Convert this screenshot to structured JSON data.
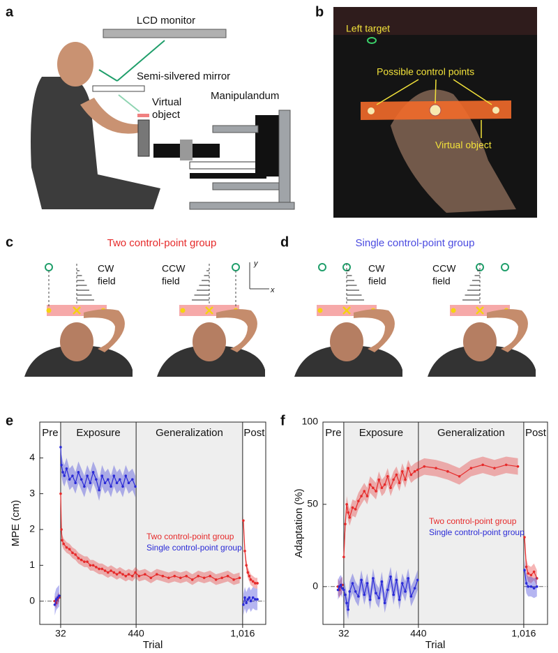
{
  "figure": {
    "letters": [
      "a",
      "b",
      "c",
      "d",
      "e",
      "f"
    ],
    "panel_a": {
      "monitor": "LCD monitor",
      "mirror": "Semi-silvered mirror",
      "object": [
        "Virtual",
        "object"
      ],
      "manipulandum": "Manipulandum"
    },
    "panel_b": {
      "target": "Left target",
      "points": "Possible control points",
      "object": "Virtual object"
    },
    "panel_c": {
      "title": "Two control-point group",
      "cw": [
        "CW",
        "field"
      ],
      "ccw": [
        "CCW",
        "field"
      ],
      "y_axis": "y",
      "x_axis": "x"
    },
    "panel_d": {
      "title": "Single control-point group",
      "cw": [
        "CW",
        "field"
      ],
      "ccw": [
        "CCW",
        "field"
      ]
    }
  },
  "chart_data": [
    {
      "type": "line",
      "xlabel": "Trial",
      "ylabel": "MPE (cm)",
      "xlim": [
        -81,
        1141
      ],
      "ylim": [
        -0.65,
        5
      ],
      "xticks": [
        32,
        440,
        {
          "value": 1016,
          "label": "1,016"
        }
      ],
      "yticks": [
        0,
        1,
        2,
        3,
        4
      ],
      "regions": [
        "Pre",
        "Exposure",
        "Generalization",
        "Post"
      ],
      "zero_line": true,
      "series": [
        {
          "name": "Two control-point group",
          "color": "#e62a2a",
          "error": 0.15,
          "x": [
            0,
            8,
            16,
            24,
            30,
            32,
            36,
            40,
            48,
            64,
            80,
            96,
            112,
            128,
            144,
            160,
            176,
            192,
            208,
            224,
            240,
            256,
            272,
            288,
            304,
            320,
            336,
            352,
            368,
            384,
            400,
            420,
            436,
            456,
            488,
            520,
            552,
            584,
            616,
            648,
            680,
            712,
            744,
            776,
            808,
            840,
            872,
            904,
            936,
            968,
            1000,
            1010,
            1020,
            1028,
            1036,
            1044,
            1052,
            1060,
            1072,
            1084,
            1096
          ],
          "values": [
            0,
            -0.05,
            0.05,
            0.1,
            null,
            3.0,
            2.0,
            1.7,
            1.6,
            1.5,
            1.45,
            1.35,
            1.3,
            1.2,
            1.15,
            1.1,
            1.1,
            1.0,
            1.0,
            0.95,
            0.9,
            0.9,
            0.85,
            0.8,
            0.85,
            0.8,
            0.75,
            0.8,
            0.75,
            0.7,
            0.75,
            0.7,
            0.8,
            0.7,
            0.75,
            0.65,
            0.75,
            0.7,
            0.65,
            0.7,
            0.65,
            0.7,
            0.6,
            0.7,
            0.65,
            0.7,
            0.6,
            0.65,
            0.7,
            0.6,
            0.65,
            null,
            2.25,
            1.4,
            1.0,
            0.8,
            0.7,
            0.6,
            0.55,
            0.5,
            0.5
          ]
        },
        {
          "name": "Single control-point group",
          "color": "#2a2ad6",
          "error": 0.3,
          "x": [
            0,
            8,
            16,
            24,
            30,
            32,
            36,
            44,
            52,
            64,
            80,
            96,
            112,
            128,
            144,
            160,
            176,
            192,
            208,
            224,
            240,
            256,
            272,
            288,
            304,
            320,
            336,
            352,
            368,
            384,
            400,
            420,
            436,
            1010,
            1020,
            1028,
            1036,
            1044,
            1052,
            1060,
            1072,
            1084,
            1096
          ],
          "values": [
            -0.1,
            0.05,
            0.1,
            0.15,
            null,
            4.3,
            3.8,
            3.6,
            3.5,
            3.7,
            3.4,
            3.5,
            3.3,
            3.6,
            3.4,
            3.2,
            3.5,
            3.3,
            3.6,
            3.4,
            3.1,
            3.5,
            3.3,
            3.4,
            3.2,
            3.5,
            3.3,
            3.4,
            3.2,
            3.5,
            3.3,
            3.4,
            3.2,
            null,
            -0.1,
            0.1,
            -0.05,
            0.05,
            0.1,
            0.0,
            0.1,
            0.05,
            0.05
          ]
        }
      ]
    },
    {
      "type": "line",
      "xlabel": "Trial",
      "ylabel": "Adaptation (%)",
      "xlim": [
        -82,
        1146
      ],
      "ylim": [
        -23,
        100
      ],
      "xticks": [
        32,
        440,
        {
          "value": 1016,
          "label": "1,016"
        }
      ],
      "yticks": [
        0,
        50,
        100
      ],
      "regions": [
        "Pre",
        "Exposure",
        "Generalization",
        "Post"
      ],
      "zero_line": true,
      "series": [
        {
          "name": "Two control-point group",
          "color": "#e62a2a",
          "error": 5,
          "x": [
            0,
            8,
            16,
            24,
            30,
            32,
            40,
            48,
            56,
            64,
            80,
            96,
            112,
            128,
            144,
            160,
            176,
            192,
            208,
            224,
            240,
            256,
            272,
            288,
            304,
            320,
            336,
            352,
            368,
            384,
            400,
            420,
            436,
            472,
            536,
            600,
            664,
            728,
            792,
            856,
            920,
            984,
            1010,
            1020,
            1030,
            1040,
            1056,
            1072,
            1088
          ],
          "values": [
            0,
            -2,
            0,
            1,
            null,
            18,
            38,
            50,
            45,
            42,
            48,
            47,
            52,
            55,
            58,
            55,
            62,
            60,
            58,
            65,
            60,
            62,
            67,
            60,
            65,
            68,
            63,
            70,
            65,
            72,
            68,
            70,
            71,
            73,
            72,
            70,
            67,
            72,
            74,
            72,
            74,
            73,
            null,
            30,
            12,
            8,
            7,
            9,
            5
          ]
        },
        {
          "name": "Single control-point group",
          "color": "#2a2ad6",
          "error": 6,
          "x": [
            0,
            8,
            16,
            24,
            30,
            32,
            40,
            48,
            56,
            64,
            80,
            96,
            112,
            128,
            144,
            160,
            176,
            192,
            208,
            224,
            240,
            256,
            272,
            288,
            304,
            320,
            336,
            352,
            368,
            384,
            400,
            420,
            436,
            1010,
            1020,
            1030,
            1040,
            1056,
            1072,
            1088
          ],
          "values": [
            -2,
            0,
            1,
            -1,
            null,
            -2,
            -5,
            -10,
            -14,
            -3,
            2,
            -3,
            -6,
            4,
            -5,
            2,
            -8,
            5,
            -4,
            -7,
            3,
            -10,
            -2,
            6,
            -5,
            4,
            -8,
            2,
            -3,
            5,
            -6,
            -1,
            4,
            null,
            10,
            2,
            0,
            0,
            -1,
            0
          ]
        }
      ]
    }
  ]
}
